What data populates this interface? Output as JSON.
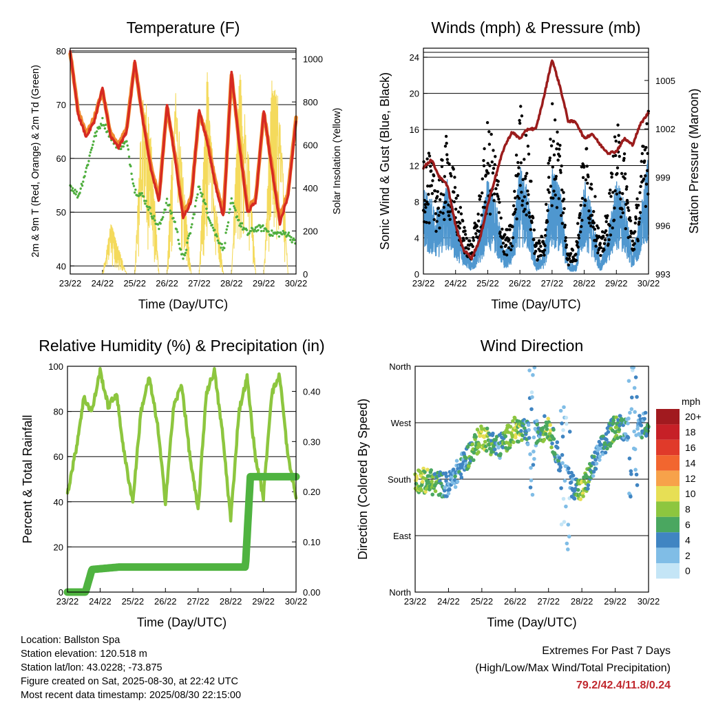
{
  "x_ticks": [
    "23/22",
    "24/22",
    "25/22",
    "26/22",
    "27/22",
    "28/22",
    "29/22",
    "30/22"
  ],
  "x_label": "Time (Day/UTC)",
  "colors": {
    "t2m": "#d62a22",
    "t9m": "#f08a30",
    "td": "#4fae3e",
    "solar": "#f4da5c",
    "gust": "#000000",
    "wind": "#4f97cf",
    "pressure": "#9b1c1c",
    "rh": "#8dc63f",
    "precip": "#4fb340"
  },
  "panels": {
    "temperature": {
      "title": "Temperature (F)",
      "ylabel_left": "2m & 9m T (Red, Orange) & 2m Td (Green)",
      "ylabel_right": "Solar Insolation (Yellow)",
      "yticks_left": [
        "40",
        "50",
        "60",
        "70",
        "80"
      ],
      "yticks_right": [
        "0",
        "200",
        "400",
        "600",
        "800",
        "1000"
      ]
    },
    "wind": {
      "title": "Winds (mph) & Pressure (mb)",
      "ylabel_left": "Sonic Wind & Gust (Blue, Black)",
      "ylabel_right": "Station Pressure (Maroon)",
      "yticks_left": [
        "0",
        "4",
        "8",
        "12",
        "16",
        "20",
        "24"
      ],
      "yticks_right": [
        "993",
        "996",
        "999",
        "1002",
        "1005"
      ]
    },
    "humidity": {
      "title": "Relative Humidity (%) & Precipitation (in)",
      "ylabel_left": "Percent & Total Rainfall",
      "yticks_left": [
        "0",
        "20",
        "40",
        "60",
        "80",
        "100"
      ],
      "yticks_right": [
        "0.00",
        "0.10",
        "0.20",
        "0.30",
        "0.40"
      ]
    },
    "direction": {
      "title": "Wind Direction",
      "ylabel_left": "Direction (Colored By Speed)",
      "yticks_left": [
        "North",
        "East",
        "South",
        "West",
        "North"
      ]
    }
  },
  "speed_legend": {
    "unit": "mph",
    "labels": [
      "20+",
      "18",
      "16",
      "14",
      "12",
      "10",
      "8",
      "6",
      "4",
      "2",
      "0"
    ],
    "colors": [
      "#a11a1f",
      "#c62027",
      "#e03a2a",
      "#f2662f",
      "#f7a24a",
      "#e7df55",
      "#8dc63f",
      "#4aa760",
      "#4085c2",
      "#80bde6",
      "#c4e5f6"
    ]
  },
  "chart_data": [
    {
      "type": "line",
      "title": "Temperature (F)",
      "xlabel": "Time (Day/UTC)",
      "ylabel": "2m & 9m T (Red, Orange) & 2m Td (Green)",
      "ylabel_right": "Solar Insolation (Yellow)",
      "ylim": [
        38.5,
        80.5
      ],
      "ylim_right": [
        0,
        1050
      ],
      "x": [
        0,
        0.25,
        0.5,
        0.75,
        1,
        1.25,
        1.5,
        1.75,
        2,
        2.25,
        2.5,
        2.75,
        3,
        3.25,
        3.5,
        3.75,
        4,
        4.25,
        4.5,
        4.75,
        5,
        5.25,
        5.5,
        5.75,
        6,
        6.25,
        6.5,
        6.75,
        7
      ],
      "series": [
        {
          "name": "2m T",
          "values": [
            80,
            68,
            64,
            67,
            73,
            64,
            62,
            65,
            78,
            67,
            58,
            52,
            70,
            60,
            49,
            52,
            69,
            63,
            55,
            49,
            76,
            62,
            50,
            52,
            69,
            58,
            48,
            53,
            67
          ]
        },
        {
          "name": "9m T",
          "values": [
            79,
            68,
            64,
            67,
            72,
            64,
            62,
            65,
            77,
            67,
            58,
            52,
            69,
            60,
            49,
            52,
            68,
            63,
            55,
            49,
            75,
            62,
            50,
            52,
            68,
            58,
            48,
            53,
            67
          ]
        },
        {
          "name": "2m Td",
          "values": [
            55,
            53,
            58,
            64,
            67,
            64,
            62,
            63,
            54,
            53,
            50,
            47,
            52,
            48,
            41,
            47,
            55,
            50,
            46,
            43,
            52,
            48,
            46,
            47,
            47,
            46,
            46,
            46,
            44
          ]
        },
        {
          "name": "Solar Insolation",
          "axis": "right",
          "values": [
            0,
            0,
            0,
            0,
            0,
            250,
            120,
            0,
            0,
            900,
            650,
            0,
            0,
            900,
            450,
            0,
            0,
            1000,
            350,
            0,
            0,
            950,
            650,
            0,
            0,
            900,
            800,
            0,
            0
          ]
        }
      ]
    },
    {
      "type": "scatter",
      "title": "Winds (mph) & Pressure (mb)",
      "xlabel": "Time (Day/UTC)",
      "ylabel": "Sonic Wind & Gust (Blue, Black)",
      "ylabel_right": "Station Pressure (Maroon)",
      "ylim": [
        0,
        25
      ],
      "ylim_right": [
        993,
        1007
      ],
      "x": [
        0,
        0.25,
        0.5,
        0.75,
        1,
        1.25,
        1.5,
        1.75,
        2,
        2.25,
        2.5,
        2.75,
        3,
        3.25,
        3.5,
        3.75,
        4,
        4.25,
        4.5,
        4.75,
        5,
        5.25,
        5.5,
        5.75,
        6,
        6.25,
        6.5,
        6.75,
        7
      ],
      "series": [
        {
          "name": "Gust",
          "values": [
            13,
            11,
            10,
            14,
            9,
            5,
            3,
            8,
            15,
            12,
            4,
            5,
            17,
            13,
            3,
            4,
            17,
            14,
            2,
            3,
            14,
            10,
            3,
            7,
            15,
            12,
            4,
            10,
            20
          ]
        },
        {
          "name": "Sonic Wind",
          "values": [
            8,
            7,
            6,
            9,
            5,
            3,
            1,
            4,
            9,
            7,
            2,
            3,
            10,
            8,
            1,
            2,
            10,
            8,
            1,
            1,
            9,
            6,
            1,
            4,
            9,
            7,
            2,
            6,
            11
          ]
        },
        {
          "name": "Station Pressure",
          "axis": "right",
          "values": [
            999.6,
            1000.1,
            999,
            998.5,
            996,
            994.5,
            994,
            995.1,
            997.3,
            999.1,
            1000.8,
            1001.8,
            1001.4,
            1002,
            1002,
            1004,
            1006.3,
            1004.6,
            1002.5,
            1002.4,
            1001.4,
            1001.7,
            1001,
            1000.5,
            1000.6,
            1001.4,
            1001,
            1002.3,
            1003
          ]
        }
      ]
    },
    {
      "type": "line",
      "title": "Relative Humidity (%) & Precipitation (in)",
      "xlabel": "Time (Day/UTC)",
      "ylabel": "Percent & Total Rainfall",
      "ylim": [
        0,
        100
      ],
      "ylim_right": [
        0,
        0.45
      ],
      "x": [
        0,
        0.25,
        0.5,
        0.75,
        1,
        1.25,
        1.5,
        1.75,
        2,
        2.25,
        2.5,
        2.75,
        3,
        3.25,
        3.5,
        3.75,
        4,
        4.25,
        4.5,
        4.75,
        5,
        5.25,
        5.5,
        5.75,
        6,
        6.25,
        6.5,
        6.75,
        7
      ],
      "series": [
        {
          "name": "Relative Humidity",
          "values": [
            44,
            62,
            86,
            80,
            98,
            82,
            88,
            60,
            40,
            80,
            95,
            75,
            40,
            82,
            92,
            60,
            36,
            88,
            98,
            70,
            32,
            80,
            95,
            60,
            42,
            88,
            96,
            60,
            42
          ]
        },
        {
          "name": "Total Precipitation",
          "axis": "right",
          "values": [
            0,
            0,
            0,
            0,
            0.045,
            0.045,
            0.05,
            0.05,
            0.05,
            0.05,
            0.05,
            0.05,
            0.05,
            0.05,
            0.05,
            0.05,
            0.05,
            0.05,
            0.05,
            0.05,
            0.05,
            0.05,
            0.05,
            0.23,
            0.23,
            0.23,
            0.23,
            0.23,
            0.23
          ]
        }
      ]
    },
    {
      "type": "scatter",
      "title": "Wind Direction",
      "xlabel": "Time (Day/UTC)",
      "ylabel": "Direction (Colored By Speed)",
      "yticks": [
        "North",
        "East",
        "South",
        "West",
        "North"
      ],
      "x": [
        0,
        0.5,
        1,
        1.5,
        2,
        2.5,
        3,
        3.5,
        4,
        4.5,
        5,
        5.5,
        6,
        6.5,
        7
      ],
      "series": [
        {
          "name": "Direction (deg)",
          "values": [
            180,
            175,
            170,
            210,
            250,
            230,
            260,
            250,
            265,
            180,
            160,
            220,
            265,
            260,
            270
          ]
        },
        {
          "name": "Speed (mph)",
          "values": [
            8,
            7,
            3,
            4,
            9,
            4,
            9,
            2,
            8,
            1,
            8,
            3,
            7,
            2,
            5
          ]
        }
      ]
    }
  ],
  "station": {
    "location": "Location: Ballston Spa",
    "elevation": "Station elevation: 120.518 m",
    "latlon": "Station lat/lon: 43.0228; -73.875",
    "created": "Figure created on Sat, 2025-08-30, at 22:42 UTC",
    "recent": "Most recent data timestamp: 2025/08/30 22:15:00"
  },
  "extremes": {
    "title": "Extremes For Past 7 Days",
    "subtitle": "(High/Low/Max Wind/Total Precipitation)",
    "values": "79.2/42.4/11.8/0.24"
  }
}
